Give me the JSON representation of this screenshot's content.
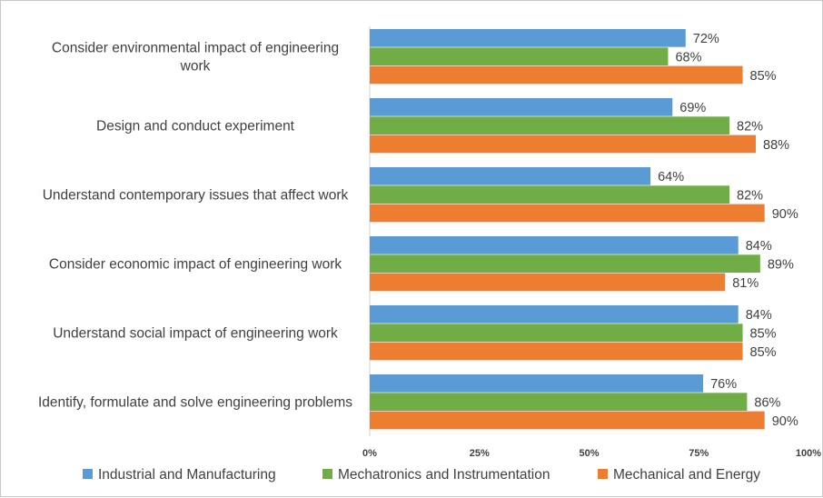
{
  "chart_data": {
    "type": "bar",
    "orientation": "horizontal",
    "categories": [
      [
        "Consider environmental impact of engineering",
        "work"
      ],
      [
        "Design and conduct experiment"
      ],
      [
        "Understand contemporary issues that affect work"
      ],
      [
        "Consider economic impact of engineering work"
      ],
      [
        "Understand social impact of engineering work"
      ],
      [
        "Identify, formulate and solve engineering problems"
      ]
    ],
    "series": [
      {
        "name": "Industrial and Manufacturing",
        "color": "#5B9BD5",
        "values": [
          72,
          69,
          64,
          84,
          84,
          76
        ]
      },
      {
        "name": "Mechatronics and Instrumentation",
        "color": "#70AD47",
        "values": [
          68,
          82,
          82,
          89,
          85,
          86
        ]
      },
      {
        "name": "Mechanical and Energy",
        "color": "#ED7D31",
        "values": [
          85,
          88,
          90,
          81,
          85,
          90
        ]
      }
    ],
    "value_suffix": "%",
    "xlim": [
      0,
      100
    ],
    "x_ticks": [
      0,
      25,
      50,
      75,
      100
    ],
    "x_tick_labels": [
      "0%",
      "25%",
      "50%",
      "75%",
      "100%"
    ],
    "grid": false,
    "legend_position": "bottom"
  }
}
